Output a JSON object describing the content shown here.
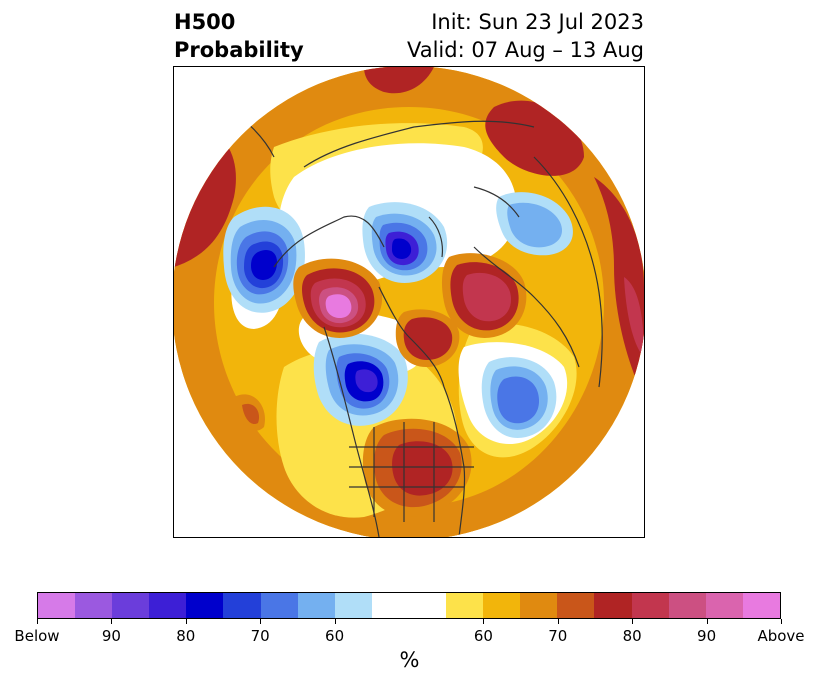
{
  "title": {
    "left_line1": "H500",
    "left_line2": "Probability",
    "right_line1": "Init: Sun 23 Jul 2023",
    "right_line2": "Valid: 07 Aug – 13 Aug"
  },
  "colorbar": {
    "colors": [
      "#d67ae8",
      "#9b59e0",
      "#6b3ddb",
      "#3d1fd6",
      "#0000cc",
      "#2340d9",
      "#4a76e6",
      "#74b0f0",
      "#b0def8",
      "#ffffff",
      "#ffffff",
      "#fde24a",
      "#f2b50b",
      "#e08a10",
      "#c9561a",
      "#b02424",
      "#c2364e",
      "#cc5082",
      "#da64ae",
      "#e87ae0"
    ],
    "tick_labels": [
      "Below",
      "90",
      "80",
      "70",
      "60",
      "60",
      "70",
      "80",
      "90",
      "Above"
    ],
    "unit": "%"
  },
  "map": {
    "projection": "north-polar-stereographic",
    "field": "H500 probability",
    "palette": {
      "background": "#f2b50b",
      "above_60": "#fde24a",
      "above_70": "#e08a10",
      "above_75": "#c9561a",
      "above_80": "#b02424",
      "above_85": "#c2364e",
      "above_90": "#cc5082",
      "above_95": "#e87ae0",
      "below_60": "#b0def8",
      "below_65": "#74b0f0",
      "below_70": "#4a76e6",
      "below_80": "#2340d9",
      "below_90": "#0000cc",
      "below_95": "#3d1fd6",
      "neutral": "#ffffff",
      "coastline": "#333333"
    }
  }
}
